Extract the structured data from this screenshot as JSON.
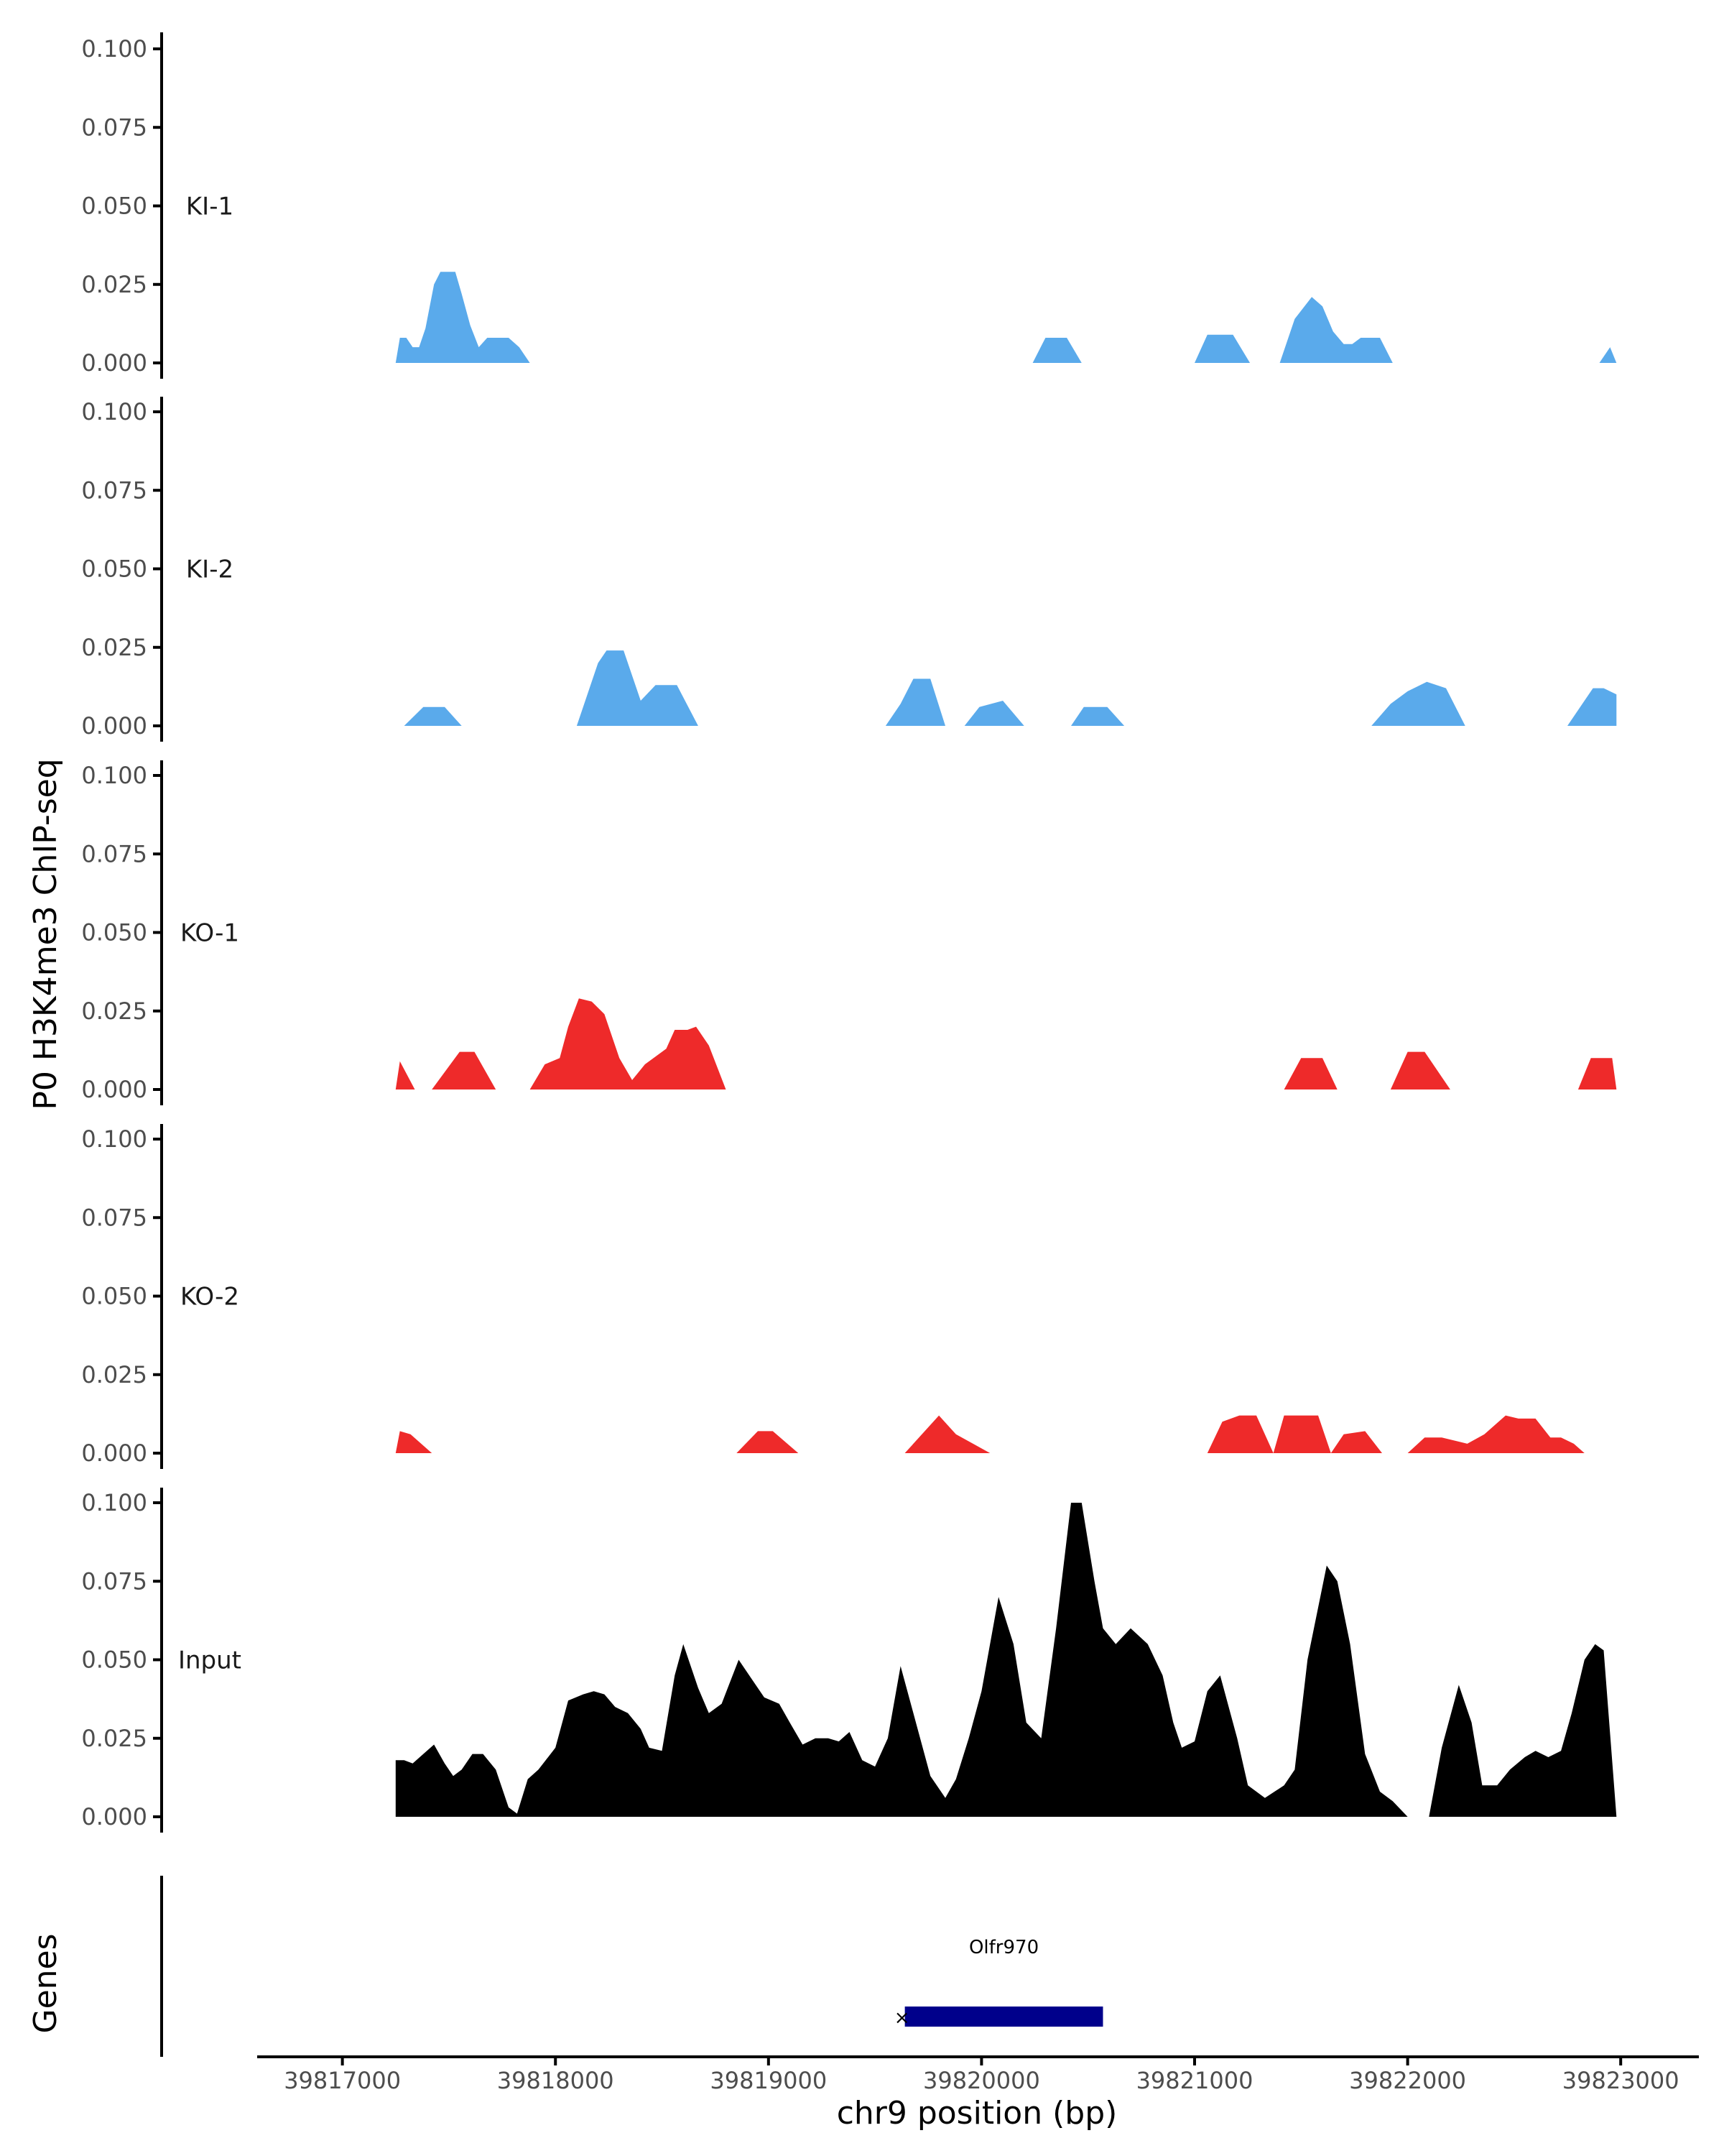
{
  "chart_data": {
    "type": "area",
    "title": "",
    "ylabel": "P0 H3K4me3 ChIP-seq",
    "xlabel": "chr9 position (bp)",
    "xlim": [
      39816600,
      39823350
    ],
    "x_ticks": [
      39817000,
      39818000,
      39819000,
      39820000,
      39821000,
      39822000,
      39823000
    ],
    "x_tick_labels": [
      "39817000",
      "39818000",
      "39819000",
      "39820000",
      "39821000",
      "39822000",
      "39823000"
    ],
    "ylim": [
      0,
      0.1
    ],
    "y_ticks": [
      0,
      0.025,
      0.05,
      0.075,
      0.1
    ],
    "y_tick_labels": [
      "0.000",
      "0.025",
      "0.050",
      "0.075",
      "0.100"
    ],
    "colors": {
      "KI": "#5aaaeb",
      "KO": "#ee2a2a",
      "Input": "#000000",
      "gene": "#00008b"
    },
    "tracks": [
      {
        "name": "KI-1",
        "color": "#5aaaeb",
        "x": [
          39817250,
          39817270,
          39817300,
          39817330,
          39817360,
          39817390,
          39817430,
          39817460,
          39817530,
          39817560,
          39817600,
          39817640,
          39817680,
          39817780,
          39817830,
          39817880,
          39818800,
          39819500,
          39820200,
          39820240,
          39820300,
          39820400,
          39820470,
          39820980,
          39821000,
          39821060,
          39821180,
          39821260,
          39821380,
          39821400,
          39821470,
          39821550,
          39821600,
          39821650,
          39821700,
          39821740,
          39821780,
          39821870,
          39821930,
          39822000,
          39822900,
          39822950,
          39822980
        ],
        "y": [
          0,
          0.008,
          0.008,
          0.005,
          0.005,
          0.011,
          0.025,
          0.029,
          0.029,
          0.022,
          0.012,
          0.005,
          0.008,
          0.008,
          0.005,
          0,
          0,
          0,
          0,
          0,
          0.008,
          0.008,
          0,
          0,
          0,
          0.009,
          0.009,
          0,
          0,
          0,
          0.014,
          0.021,
          0.018,
          0.01,
          0.006,
          0.006,
          0.008,
          0.008,
          0,
          0,
          0,
          0.005,
          0
        ]
      },
      {
        "name": "KI-2",
        "color": "#5aaaeb",
        "x": [
          39817290,
          39817380,
          39817480,
          39817560,
          39818100,
          39818200,
          39818240,
          39818320,
          39818400,
          39818470,
          39818570,
          39818670,
          39819550,
          39819620,
          39819680,
          39819760,
          39819830,
          39819920,
          39819990,
          39820100,
          39820200,
          39820420,
          39820480,
          39820590,
          39820670,
          39821830,
          39821920,
          39822000,
          39822090,
          39822180,
          39822270,
          39822750,
          39822820,
          39822870,
          39822920,
          39822980
        ],
        "y": [
          0,
          0.006,
          0.006,
          0,
          0,
          0.02,
          0.024,
          0.024,
          0.008,
          0.013,
          0.013,
          0,
          0,
          0.007,
          0.015,
          0.015,
          0,
          0,
          0.006,
          0.008,
          0,
          0,
          0.006,
          0.006,
          0,
          0,
          0.007,
          0.011,
          0.014,
          0.012,
          0,
          0,
          0.007,
          0.012,
          0.012,
          0.01
        ]
      },
      {
        "name": "KO-1",
        "color": "#ee2a2a",
        "x": [
          39817250,
          39817270,
          39817340,
          39817420,
          39817550,
          39817620,
          39817720,
          39817880,
          39817950,
          39818020,
          39818060,
          39818110,
          39818170,
          39818230,
          39818300,
          39818360,
          39818420,
          39818520,
          39818560,
          39818620,
          39818660,
          39818720,
          39818800,
          39821420,
          39821500,
          39821600,
          39821670,
          39821920,
          39822000,
          39822080,
          39822200,
          39822800,
          39822860,
          39822960,
          39822980
        ],
        "y": [
          0,
          0.009,
          0,
          0,
          0.012,
          0.012,
          0,
          0,
          0.008,
          0.01,
          0.02,
          0.029,
          0.028,
          0.024,
          0.01,
          0.003,
          0.008,
          0.013,
          0.019,
          0.019,
          0.02,
          0.014,
          0,
          0,
          0.01,
          0.01,
          0,
          0,
          0.012,
          0.012,
          0,
          0,
          0.01,
          0.01,
          0
        ],
        "y_start": 0
      },
      {
        "name": "KO-2",
        "color": "#ee2a2a",
        "x": [
          39817250,
          39817270,
          39817320,
          39817420,
          39818850,
          39818950,
          39819020,
          39819140,
          39819640,
          39819720,
          39819800,
          39819880,
          39819960,
          39820040,
          39821060,
          39821130,
          39821210,
          39821290,
          39821370,
          39821420,
          39821480,
          39821580,
          39821640,
          39821700,
          39821800,
          39821880,
          39822000,
          39822080,
          39822160,
          39822280,
          39822360,
          39822460,
          39822520,
          39822600,
          39822670,
          39822720,
          39822780,
          39822830
        ],
        "y": [
          0,
          0.007,
          0.006,
          0,
          0,
          0.007,
          0.007,
          0,
          0,
          0.006,
          0.012,
          0.006,
          0.003,
          0,
          0,
          0.01,
          0.012,
          0.012,
          0,
          0.012,
          0.012,
          0.012,
          0,
          0.006,
          0.007,
          0,
          0,
          0.005,
          0.005,
          0.003,
          0.006,
          0.012,
          0.011,
          0.011,
          0.005,
          0.005,
          0.003,
          0
        ]
      },
      {
        "name": "Input",
        "color": "#000000",
        "x": [
          39817250,
          39817290,
          39817330,
          39817380,
          39817430,
          39817480,
          39817520,
          39817560,
          39817610,
          39817660,
          39817720,
          39817780,
          39817820,
          39817870,
          39817920,
          39818000,
          39818060,
          39818130,
          39818180,
          39818230,
          39818280,
          39818340,
          39818400,
          39818440,
          39818500,
          39818560,
          39818600,
          39818670,
          39818720,
          39818780,
          39818860,
          39818920,
          39818980,
          39819050,
          39819100,
          39819160,
          39819220,
          39819280,
          39819330,
          39819380,
          39819440,
          39819500,
          39819560,
          39819620,
          39819700,
          39819760,
          39819830,
          39819880,
          39819940,
          39820000,
          39820080,
          39820150,
          39820210,
          39820280,
          39820350,
          39820420,
          39820470,
          39820530,
          39820570,
          39820630,
          39820700,
          39820780,
          39820850,
          39820900,
          39820940,
          39821000,
          39821060,
          39821120,
          39821200,
          39821250,
          39821330,
          39821420,
          39821470,
          39821530,
          39821620,
          39821670,
          39821730,
          39821800,
          39821870,
          39821930,
          39822000,
          39822100,
          39822160,
          39822240,
          39822300,
          39822350,
          39822420,
          39822480,
          39822550,
          39822600,
          39822660,
          39822720,
          39822770,
          39822830,
          39822880,
          39822920,
          39822980
        ],
        "y": [
          0.018,
          0.018,
          0.017,
          0.02,
          0.023,
          0.017,
          0.013,
          0.015,
          0.02,
          0.02,
          0.015,
          0.003,
          0.001,
          0.012,
          0.015,
          0.022,
          0.037,
          0.039,
          0.04,
          0.039,
          0.035,
          0.033,
          0.028,
          0.022,
          0.021,
          0.045,
          0.055,
          0.041,
          0.033,
          0.036,
          0.05,
          0.044,
          0.038,
          0.036,
          0.03,
          0.023,
          0.025,
          0.025,
          0.024,
          0.027,
          0.018,
          0.016,
          0.025,
          0.048,
          0.028,
          0.013,
          0.006,
          0.012,
          0.025,
          0.04,
          0.07,
          0.055,
          0.03,
          0.025,
          0.06,
          0.1,
          0.1,
          0.075,
          0.06,
          0.055,
          0.06,
          0.055,
          0.045,
          0.03,
          0.022,
          0.024,
          0.04,
          0.045,
          0.025,
          0.01,
          0.006,
          0.01,
          0.015,
          0.05,
          0.08,
          0.075,
          0.055,
          0.02,
          0.008,
          0.005,
          0.0,
          0.0,
          0.022,
          0.042,
          0.03,
          0.01,
          0.01,
          0.015,
          0.019,
          0.021,
          0.019,
          0.021,
          0.033,
          0.05,
          0.055,
          0.053,
          0.0
        ]
      }
    ],
    "genes_track": {
      "label": "Genes",
      "genes": [
        {
          "name": "Olfr970",
          "start": 39819640,
          "end": 39820570,
          "strand": "-"
        }
      ]
    }
  }
}
